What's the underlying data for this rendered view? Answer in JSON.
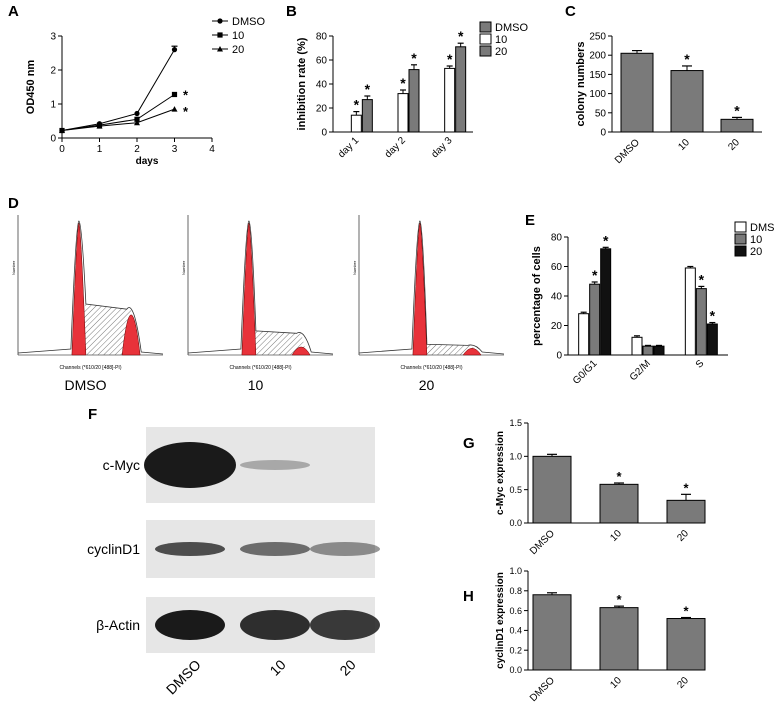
{
  "panels": {
    "a": "A",
    "b": "B",
    "c": "C",
    "d": "D",
    "e": "E",
    "f": "F",
    "g": "G",
    "h": "H"
  },
  "colors": {
    "dark_gray": "#7a7a7a",
    "black": "#111111",
    "white": "#ffffff",
    "red_peak": "#e8323a",
    "blot_band": "#1a1a1a"
  },
  "chart_data": [
    {
      "id": "A",
      "type": "line",
      "xlabel": "days",
      "ylabel": "OD450 nm",
      "xlim": [
        0,
        4
      ],
      "ylim": [
        0,
        3
      ],
      "xticks": [
        "0",
        "1",
        "2",
        "3",
        "4"
      ],
      "yticks": [
        "0",
        "1",
        "2",
        "3"
      ],
      "x": [
        0,
        1,
        2,
        3
      ],
      "series": [
        {
          "name": "DMSO",
          "values": [
            0.22,
            0.42,
            0.72,
            2.6
          ],
          "marker": "circle"
        },
        {
          "name": "10",
          "values": [
            0.22,
            0.38,
            0.55,
            1.28
          ],
          "marker": "square"
        },
        {
          "name": "20",
          "values": [
            0.22,
            0.35,
            0.45,
            0.85
          ],
          "marker": "triangle"
        }
      ],
      "annotations": [
        "*",
        "*"
      ]
    },
    {
      "id": "B",
      "type": "bar",
      "ylabel": "inhibition rate (%)",
      "categories": [
        "day 1",
        "day 2",
        "day 3"
      ],
      "ylim": [
        0,
        80
      ],
      "yticks": [
        "0",
        "20",
        "40",
        "60",
        "80"
      ],
      "series": [
        {
          "name": "DMSO",
          "values": [
            0,
            0,
            0
          ]
        },
        {
          "name": "10",
          "values": [
            14,
            32,
            53
          ]
        },
        {
          "name": "20",
          "values": [
            27,
            52,
            71
          ]
        }
      ],
      "errors": [
        [
          0,
          0,
          0
        ],
        [
          3,
          3,
          2
        ],
        [
          3,
          4,
          3
        ]
      ],
      "annotations": [
        "*",
        "*",
        "*",
        "*",
        "*",
        "*"
      ]
    },
    {
      "id": "C",
      "type": "bar",
      "ylabel": "colony numbers",
      "categories": [
        "DMSO",
        "10",
        "20"
      ],
      "values": [
        205,
        160,
        33
      ],
      "errors": [
        7,
        12,
        5
      ],
      "ylim": [
        0,
        250
      ],
      "yticks": [
        "0",
        "50",
        "100",
        "150",
        "200",
        "250"
      ],
      "annotations": [
        "*",
        "*"
      ]
    },
    {
      "id": "E",
      "type": "bar",
      "ylabel": "percentage of cells",
      "categories": [
        "G0/G1",
        "G2/M",
        "S"
      ],
      "ylim": [
        0,
        80
      ],
      "yticks": [
        "0",
        "20",
        "40",
        "60",
        "80"
      ],
      "series": [
        {
          "name": "DMSO",
          "values": [
            28,
            12,
            59
          ]
        },
        {
          "name": "10",
          "values": [
            48,
            6,
            45
          ]
        },
        {
          "name": "20",
          "values": [
            72,
            6,
            21
          ]
        }
      ],
      "errors": [
        [
          1,
          1,
          1
        ],
        [
          1.5,
          0.5,
          1.5
        ],
        [
          1,
          0.5,
          1
        ]
      ],
      "annotations": [
        "*",
        "*",
        "*",
        "*"
      ]
    },
    {
      "id": "G",
      "type": "bar",
      "ylabel": "c-Myc expression",
      "categories": [
        "DMSO",
        "10",
        "20"
      ],
      "values": [
        1.0,
        0.58,
        0.34
      ],
      "errors": [
        0.03,
        0.02,
        0.09
      ],
      "ylim": [
        0,
        1.5
      ],
      "yticks": [
        "0.0",
        "0.5",
        "1.0",
        "1.5"
      ],
      "annotations": [
        "*",
        "*"
      ]
    },
    {
      "id": "H",
      "type": "bar",
      "ylabel": "cyclinD1 expression",
      "categories": [
        "DMSO",
        "10",
        "20"
      ],
      "values": [
        0.76,
        0.63,
        0.52
      ],
      "errors": [
        0.02,
        0.015,
        0.01
      ],
      "ylim": [
        0,
        1.0
      ],
      "yticks": [
        "0.0",
        "0.2",
        "0.4",
        "0.6",
        "0.8",
        "1.0"
      ],
      "annotations": [
        "*",
        "*"
      ]
    }
  ],
  "flow": {
    "xlabel": "Channels (*610/20 [488]-PI)",
    "ylabel": "Number",
    "conditions": [
      "DMSO",
      "10",
      "20"
    ]
  },
  "blot": {
    "labels": [
      "c-Myc",
      "cyclinD1",
      "β-Actin"
    ],
    "lanes": [
      "DMSO",
      "10",
      "20"
    ],
    "intensity": [
      [
        1.0,
        0.3,
        0.0
      ],
      [
        0.75,
        0.6,
        0.45
      ],
      [
        1.0,
        0.9,
        0.85
      ]
    ]
  }
}
